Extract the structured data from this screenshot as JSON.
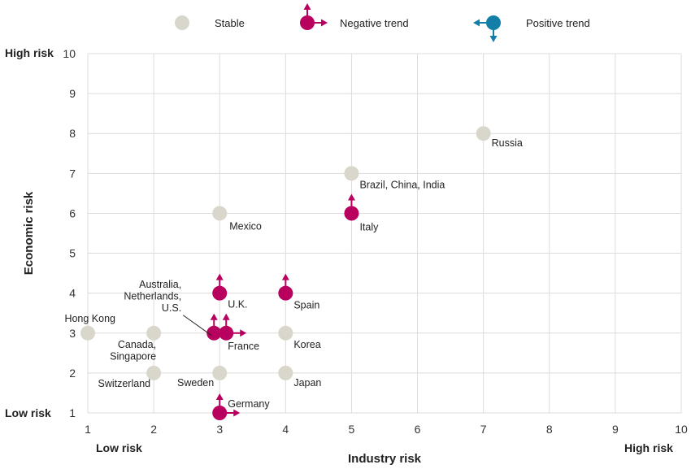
{
  "chart_data": {
    "type": "scatter",
    "xlabel": "Industry risk",
    "ylabel": "Economic risk",
    "x_low_label": "Low risk",
    "x_high_label": "High risk",
    "y_low_label": "Low risk",
    "y_high_label": "High risk",
    "xlim": [
      1,
      10
    ],
    "ylim": [
      1,
      10
    ],
    "x_ticks": [
      "1",
      "2",
      "3",
      "4",
      "5",
      "6",
      "7",
      "8",
      "9",
      "10"
    ],
    "y_ticks": [
      "1",
      "2",
      "3",
      "4",
      "5",
      "6",
      "7",
      "8",
      "9",
      "10"
    ],
    "grid": true,
    "legend_position": "top",
    "legend": [
      {
        "key": "stable",
        "label": "Stable"
      },
      {
        "key": "negative",
        "label": "Negative trend"
      },
      {
        "key": "positive",
        "label": "Positive trend"
      }
    ],
    "colors": {
      "stable": "#d9d6cc",
      "negative": "#b8005f",
      "positive": "#137fa8"
    },
    "points": [
      {
        "x": 7,
        "y": 8,
        "status": "stable",
        "label": "Russia"
      },
      {
        "x": 5,
        "y": 7,
        "status": "stable",
        "label": "Brazil, China, India"
      },
      {
        "x": 5,
        "y": 6,
        "status": "negative",
        "trend": [
          "up"
        ],
        "label": "Italy"
      },
      {
        "x": 3,
        "y": 6,
        "status": "stable",
        "label": "Mexico"
      },
      {
        "x": 3,
        "y": 4,
        "status": "negative",
        "trend": [
          "up"
        ],
        "label": "U.K."
      },
      {
        "x": 4,
        "y": 4,
        "status": "negative",
        "trend": [
          "up"
        ],
        "label": "Spain"
      },
      {
        "x": 3,
        "y": 3,
        "status": "negative",
        "trend": [
          "up"
        ],
        "label": "Australia, Netherlands, U.S."
      },
      {
        "x": 3,
        "y": 3,
        "status": "negative",
        "trend": [
          "up",
          "right"
        ],
        "label": "France"
      },
      {
        "x": 1,
        "y": 3,
        "status": "stable",
        "label": "Hong Kong"
      },
      {
        "x": 2,
        "y": 3,
        "status": "stable",
        "label": "Canada, Singapore"
      },
      {
        "x": 4,
        "y": 3,
        "status": "stable",
        "label": "Korea"
      },
      {
        "x": 2,
        "y": 2,
        "status": "stable",
        "label": "Switzerland"
      },
      {
        "x": 3,
        "y": 2,
        "status": "stable",
        "label": "Sweden"
      },
      {
        "x": 4,
        "y": 2,
        "status": "stable",
        "label": "Japan"
      },
      {
        "x": 3,
        "y": 1,
        "status": "negative",
        "trend": [
          "up",
          "right"
        ],
        "label": "Germany"
      }
    ]
  }
}
